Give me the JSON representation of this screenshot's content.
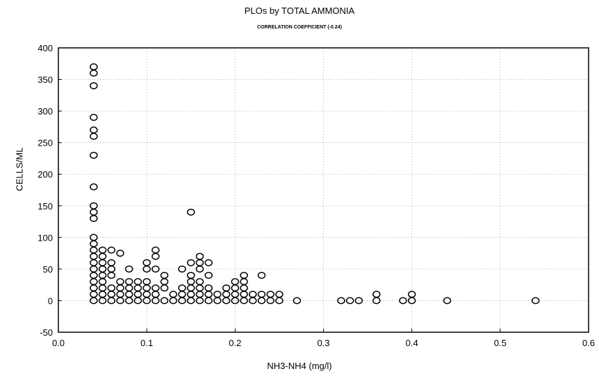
{
  "chart_data": {
    "type": "scatter",
    "title": "PLOs by  TOTAL AMMONIA",
    "subtitle": "CORRELATION COEFFICIENT (-0.24)",
    "xlabel": "NH3-NH4 (mg/l)",
    "ylabel": "CELLS/ML",
    "xlim": [
      0.0,
      0.6
    ],
    "ylim": [
      -50,
      400
    ],
    "xticks": [
      "0.0",
      "0.1",
      "0.2",
      "0.3",
      "0.4",
      "0.5",
      "0.6"
    ],
    "yticks": [
      "400",
      "350",
      "300",
      "250",
      "200",
      "150",
      "100",
      "50",
      "0",
      "-50"
    ],
    "grid": true,
    "series": [
      {
        "marker": "open-circle",
        "points": [
          [
            0.04,
            370
          ],
          [
            0.04,
            360
          ],
          [
            0.04,
            340
          ],
          [
            0.04,
            290
          ],
          [
            0.04,
            270
          ],
          [
            0.04,
            260
          ],
          [
            0.04,
            230
          ],
          [
            0.04,
            180
          ],
          [
            0.04,
            150
          ],
          [
            0.04,
            140
          ],
          [
            0.04,
            130
          ],
          [
            0.04,
            100
          ],
          [
            0.04,
            90
          ],
          [
            0.04,
            80
          ],
          [
            0.04,
            70
          ],
          [
            0.04,
            60
          ],
          [
            0.04,
            50
          ],
          [
            0.04,
            40
          ],
          [
            0.04,
            30
          ],
          [
            0.04,
            20
          ],
          [
            0.04,
            10
          ],
          [
            0.04,
            0
          ],
          [
            0.05,
            80
          ],
          [
            0.05,
            70
          ],
          [
            0.05,
            60
          ],
          [
            0.05,
            50
          ],
          [
            0.05,
            40
          ],
          [
            0.05,
            30
          ],
          [
            0.05,
            20
          ],
          [
            0.05,
            10
          ],
          [
            0.05,
            0
          ],
          [
            0.06,
            80
          ],
          [
            0.06,
            60
          ],
          [
            0.06,
            50
          ],
          [
            0.06,
            40
          ],
          [
            0.06,
            20
          ],
          [
            0.06,
            10
          ],
          [
            0.06,
            0
          ],
          [
            0.07,
            75
          ],
          [
            0.07,
            30
          ],
          [
            0.07,
            20
          ],
          [
            0.07,
            10
          ],
          [
            0.07,
            0
          ],
          [
            0.08,
            50
          ],
          [
            0.08,
            30
          ],
          [
            0.08,
            20
          ],
          [
            0.08,
            10
          ],
          [
            0.08,
            0
          ],
          [
            0.09,
            30
          ],
          [
            0.09,
            20
          ],
          [
            0.09,
            10
          ],
          [
            0.09,
            0
          ],
          [
            0.1,
            60
          ],
          [
            0.1,
            50
          ],
          [
            0.1,
            30
          ],
          [
            0.1,
            20
          ],
          [
            0.1,
            10
          ],
          [
            0.1,
            0
          ],
          [
            0.11,
            80
          ],
          [
            0.11,
            70
          ],
          [
            0.11,
            50
          ],
          [
            0.11,
            20
          ],
          [
            0.11,
            10
          ],
          [
            0.11,
            0
          ],
          [
            0.12,
            40
          ],
          [
            0.12,
            30
          ],
          [
            0.12,
            20
          ],
          [
            0.12,
            0
          ],
          [
            0.13,
            10
          ],
          [
            0.13,
            0
          ],
          [
            0.14,
            50
          ],
          [
            0.14,
            20
          ],
          [
            0.14,
            10
          ],
          [
            0.14,
            0
          ],
          [
            0.15,
            140
          ],
          [
            0.15,
            60
          ],
          [
            0.15,
            40
          ],
          [
            0.15,
            30
          ],
          [
            0.15,
            20
          ],
          [
            0.15,
            10
          ],
          [
            0.15,
            0
          ],
          [
            0.16,
            70
          ],
          [
            0.16,
            60
          ],
          [
            0.16,
            50
          ],
          [
            0.16,
            30
          ],
          [
            0.16,
            20
          ],
          [
            0.16,
            10
          ],
          [
            0.16,
            0
          ],
          [
            0.17,
            60
          ],
          [
            0.17,
            40
          ],
          [
            0.17,
            20
          ],
          [
            0.17,
            10
          ],
          [
            0.17,
            0
          ],
          [
            0.18,
            10
          ],
          [
            0.18,
            0
          ],
          [
            0.19,
            20
          ],
          [
            0.19,
            10
          ],
          [
            0.19,
            0
          ],
          [
            0.2,
            30
          ],
          [
            0.2,
            20
          ],
          [
            0.2,
            10
          ],
          [
            0.2,
            0
          ],
          [
            0.21,
            40
          ],
          [
            0.21,
            30
          ],
          [
            0.21,
            20
          ],
          [
            0.21,
            10
          ],
          [
            0.21,
            0
          ],
          [
            0.22,
            10
          ],
          [
            0.22,
            0
          ],
          [
            0.23,
            40
          ],
          [
            0.23,
            10
          ],
          [
            0.23,
            0
          ],
          [
            0.24,
            10
          ],
          [
            0.24,
            0
          ],
          [
            0.25,
            10
          ],
          [
            0.25,
            0
          ],
          [
            0.27,
            0
          ],
          [
            0.32,
            0
          ],
          [
            0.33,
            0
          ],
          [
            0.34,
            0
          ],
          [
            0.36,
            10
          ],
          [
            0.36,
            0
          ],
          [
            0.39,
            0
          ],
          [
            0.4,
            10
          ],
          [
            0.4,
            0
          ],
          [
            0.44,
            0
          ],
          [
            0.54,
            0
          ]
        ]
      }
    ]
  }
}
